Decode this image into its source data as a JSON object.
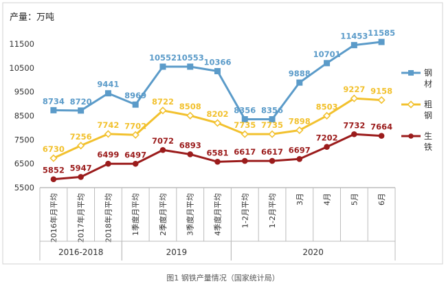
{
  "caption": "图1 钢铁产量情况（国家统计局）",
  "chart_data": {
    "type": "line",
    "unit_label": "产量：万吨",
    "categories": [
      "2016年月平均",
      "2017年月平均",
      "2018年月平均",
      "1季度月平均",
      "2季度月平均",
      "3季度月平均",
      "4季度月平均",
      "1-2月平均",
      "1-2月平均",
      "3月",
      "4月",
      "5月",
      "6月"
    ],
    "groups": [
      {
        "label": "2016-2018",
        "start": 0,
        "end": 2
      },
      {
        "label": "2019",
        "start": 3,
        "end": 6
      },
      {
        "label": "2020",
        "start": 7,
        "end": 12
      }
    ],
    "series": [
      {
        "name": "钢材",
        "color": "#5B9BC9",
        "marker": "square",
        "values": [
          8734,
          8720,
          9441,
          8969,
          10552,
          10553,
          10366,
          8356,
          8356,
          9888,
          10701,
          11453,
          11585
        ],
        "labels": [
          "8734",
          "8720",
          "9441",
          "8969",
          "10552",
          "10553",
          "10366",
          "8356",
          "8356",
          "9888",
          "10701",
          "11453",
          "11585"
        ]
      },
      {
        "name": "粗钢",
        "color": "#F2C12E",
        "marker": "diamond",
        "values": [
          6730,
          7256,
          7742,
          7702,
          8722,
          8508,
          8202,
          7735,
          7735,
          7898,
          8503,
          9227,
          9158
        ],
        "labels": [
          "6730",
          "7256",
          "7742",
          "7702",
          "8722",
          "8508",
          "8202",
          "7735",
          "7735",
          "7898",
          "8503",
          "9227",
          "9158"
        ]
      },
      {
        "name": "生铁",
        "color": "#9B1C1C",
        "marker": "circle",
        "values": [
          5852,
          5947,
          6499,
          6497,
          7072,
          6893,
          6581,
          6617,
          6617,
          6697,
          7202,
          7732,
          7664
        ],
        "labels": [
          "5852",
          "5947",
          "6499",
          "6497",
          "7072",
          "6893",
          "6581",
          "6617",
          "6617",
          "6697",
          "7202",
          "7732",
          "7664"
        ]
      }
    ],
    "legend": [
      {
        "line1": "钢",
        "line2": "材"
      },
      {
        "line1": "粗",
        "line2": "钢"
      },
      {
        "line1": "生",
        "line2": "铁"
      }
    ],
    "y_ticks": [
      "11500",
      "10500",
      "9500",
      "8500",
      "7500",
      "6500",
      "5500"
    ],
    "ylim": [
      5500,
      12000
    ],
    "legend_position": "right",
    "grid": false
  }
}
